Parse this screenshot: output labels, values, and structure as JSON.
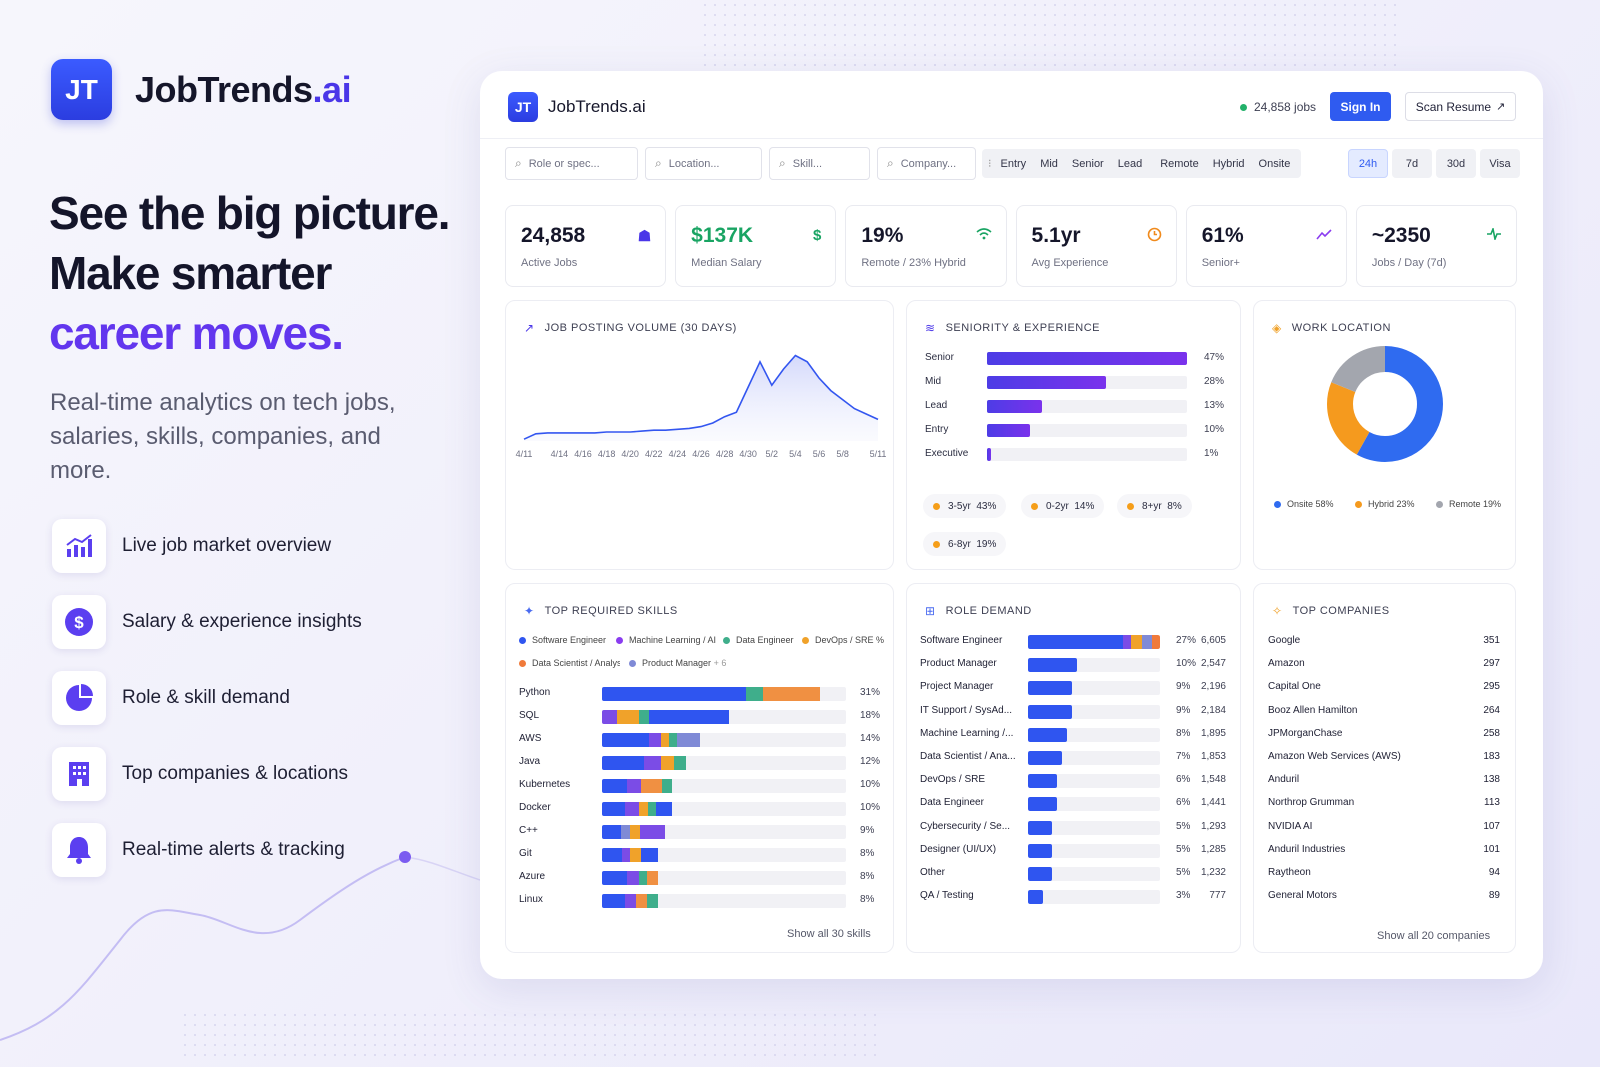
{
  "brand": {
    "logo": "JT",
    "name": "JobTrends",
    "suffix": ".ai"
  },
  "hero": {
    "line1": "See the big picture.",
    "line2": "Make smarter",
    "line3": "career moves.",
    "subtitle": "Real-time analytics on tech jobs, salaries, skills, companies, and more."
  },
  "features": [
    {
      "icon": "chart-bar-icon",
      "label": "Live job market overview"
    },
    {
      "icon": "dollar-icon",
      "label": "Salary & experience insights"
    },
    {
      "icon": "pie-chart-icon",
      "label": "Role & skill demand"
    },
    {
      "icon": "building-icon",
      "label": "Top companies & locations"
    },
    {
      "icon": "bell-icon",
      "label": "Real-time alerts & tracking"
    }
  ],
  "app": {
    "logo": "JT",
    "name": "JobTrends.ai",
    "job_count": "24,858 jobs",
    "sign_in": "Sign In",
    "scan_resume": "Scan Resume",
    "search": {
      "role": "Role or spec...",
      "location": "Location...",
      "skill": "Skill...",
      "company": "Company..."
    },
    "levels": [
      "Entry",
      "Mid",
      "Senior",
      "Lead"
    ],
    "work_types": [
      "Remote",
      "Hybrid",
      "Onsite"
    ],
    "time_ranges": [
      "24h",
      "7d",
      "30d",
      "Visa"
    ],
    "active_time": "24h"
  },
  "stats": [
    {
      "value": "24,858",
      "label": "Active Jobs",
      "icon": "users-icon",
      "color": "#4a36e8"
    },
    {
      "value": "$137K",
      "label": "Median Salary",
      "icon": "dollar-icon",
      "color": "#19a463"
    },
    {
      "value": "19%",
      "label": "Remote / 23% Hybrid",
      "icon": "wifi-icon",
      "color": "#19a463"
    },
    {
      "value": "5.1yr",
      "label": "Avg Experience",
      "icon": "clock-icon",
      "color": "#f08a1c"
    },
    {
      "value": "61%",
      "label": "Senior+",
      "icon": "trend-icon",
      "color": "#8a3cf0"
    },
    {
      "value": "~2350",
      "label": "Jobs / Day (7d)",
      "icon": "pulse-icon",
      "color": "#19a463"
    }
  ],
  "volume": {
    "title": "JOB POSTING VOLUME (30 DAYS)"
  },
  "chart_data": {
    "type": "area",
    "title": "JOB POSTING VOLUME (30 DAYS)",
    "x": [
      "4/11",
      "4/12",
      "4/13",
      "4/14",
      "4/15",
      "4/16",
      "4/17",
      "4/18",
      "4/19",
      "4/20",
      "4/21",
      "4/22",
      "4/23",
      "4/24",
      "4/25",
      "4/26",
      "4/27",
      "4/28",
      "4/29",
      "4/30",
      "5/1",
      "5/2",
      "5/3",
      "5/4",
      "5/5",
      "5/6",
      "5/7",
      "5/8",
      "5/9",
      "5/10",
      "5/11"
    ],
    "tick_labels": [
      "4/11",
      "4/14",
      "4/16",
      "4/18",
      "4/20",
      "4/22",
      "4/24",
      "4/26",
      "4/28",
      "4/30",
      "5/2",
      "5/4",
      "5/6",
      "5/8",
      "5/11"
    ],
    "y": [
      2,
      8,
      9,
      9,
      9,
      9,
      9,
      10,
      10,
      10,
      11,
      12,
      12,
      13,
      14,
      16,
      20,
      27,
      32,
      60,
      88,
      62,
      80,
      95,
      88,
      70,
      56,
      46,
      36,
      30,
      24
    ],
    "grid": false
  },
  "seniority": {
    "title": "SENIORITY & EXPERIENCE",
    "levels": [
      {
        "label": "Senior",
        "value": 47,
        "pct": "47%"
      },
      {
        "label": "Mid",
        "value": 28,
        "pct": "28%"
      },
      {
        "label": "Lead",
        "value": 13,
        "pct": "13%"
      },
      {
        "label": "Entry",
        "value": 10,
        "pct": "10%"
      },
      {
        "label": "Executive",
        "value": 1,
        "pct": "1%"
      }
    ],
    "experience": [
      {
        "label": "3-5yr",
        "pct": "43%"
      },
      {
        "label": "0-2yr",
        "pct": "14%"
      },
      {
        "label": "8+yr",
        "pct": "8%"
      },
      {
        "label": "6-8yr",
        "pct": "19%"
      }
    ]
  },
  "location": {
    "title": "WORK LOCATION",
    "slices": [
      {
        "label": "Onsite",
        "pct": "58%",
        "value": 58,
        "color": "#2f6bf0"
      },
      {
        "label": "Hybrid",
        "pct": "23%",
        "value": 23,
        "color": "#f59a1e"
      },
      {
        "label": "Remote",
        "pct": "19%",
        "value": 19,
        "color": "#a3a6ae"
      }
    ]
  },
  "skills": {
    "title": "TOP REQUIRED SKILLS",
    "legend": [
      {
        "label": "Software Engineer",
        "color": "#2f55f0"
      },
      {
        "label": "Machine Learning / AI",
        "color": "#8a3cf0"
      },
      {
        "label": "Data Engineer",
        "color": "#3fae8b"
      },
      {
        "label": "DevOps / SRE",
        "color": "#f0a22a"
      },
      {
        "label": "Data Scientist / Analyst",
        "color": "#f07a3a"
      },
      {
        "label": "Product Manager",
        "color": "#7f8ad6"
      }
    ],
    "legend_more": "+ 6",
    "rows": [
      {
        "label": "Python",
        "pct": "31%",
        "value": 31,
        "segs": [
          [
            0.66,
            "#2f55f0"
          ],
          [
            0.08,
            "#3fae8b"
          ],
          [
            0.26,
            "#f09042"
          ]
        ]
      },
      {
        "label": "SQL",
        "pct": "18%",
        "value": 18,
        "segs": [
          [
            0.12,
            "#7b4ce6"
          ],
          [
            0.17,
            "#f0a22a"
          ],
          [
            0.08,
            "#3fae8b"
          ],
          [
            0.63,
            "#2f55f0"
          ]
        ]
      },
      {
        "label": "AWS",
        "pct": "14%",
        "value": 14,
        "segs": [
          [
            0.48,
            "#2f55f0"
          ],
          [
            0.12,
            "#7b4ce6"
          ],
          [
            0.08,
            "#f0a22a"
          ],
          [
            0.08,
            "#3fae8b"
          ],
          [
            0.24,
            "#7f8ad6"
          ]
        ]
      },
      {
        "label": "Java",
        "pct": "12%",
        "value": 12,
        "segs": [
          [
            0.5,
            "#2f55f0"
          ],
          [
            0.2,
            "#7b4ce6"
          ],
          [
            0.15,
            "#f0a22a"
          ],
          [
            0.15,
            "#3fae8b"
          ]
        ]
      },
      {
        "label": "Kubernetes",
        "pct": "10%",
        "value": 10,
        "segs": [
          [
            0.35,
            "#2f55f0"
          ],
          [
            0.2,
            "#7b4ce6"
          ],
          [
            0.3,
            "#f09042"
          ],
          [
            0.15,
            "#3fae8b"
          ]
        ]
      },
      {
        "label": "Docker",
        "pct": "10%",
        "value": 10,
        "segs": [
          [
            0.33,
            "#2f55f0"
          ],
          [
            0.2,
            "#7b4ce6"
          ],
          [
            0.12,
            "#f0a22a"
          ],
          [
            0.12,
            "#3fae8b"
          ],
          [
            0.23,
            "#2f55f0"
          ]
        ]
      },
      {
        "label": "C++",
        "pct": "9%",
        "value": 9,
        "segs": [
          [
            0.3,
            "#2f55f0"
          ],
          [
            0.15,
            "#7f8ad6"
          ],
          [
            0.15,
            "#f0a22a"
          ],
          [
            0.4,
            "#7b4ce6"
          ]
        ]
      },
      {
        "label": "Git",
        "pct": "8%",
        "value": 8,
        "segs": [
          [
            0.35,
            "#2f55f0"
          ],
          [
            0.15,
            "#7b4ce6"
          ],
          [
            0.2,
            "#f0a22a"
          ],
          [
            0.3,
            "#2f55f0"
          ]
        ]
      },
      {
        "label": "Azure",
        "pct": "8%",
        "value": 8,
        "segs": [
          [
            0.45,
            "#2f55f0"
          ],
          [
            0.2,
            "#7b4ce6"
          ],
          [
            0.15,
            "#3fae8b"
          ],
          [
            0.2,
            "#f09042"
          ]
        ]
      },
      {
        "label": "Linux",
        "pct": "8%",
        "value": 8,
        "segs": [
          [
            0.4,
            "#2f55f0"
          ],
          [
            0.2,
            "#7b4ce6"
          ],
          [
            0.2,
            "#f09042"
          ],
          [
            0.2,
            "#3fae8b"
          ]
        ]
      }
    ],
    "show_all": "Show all 30 skills"
  },
  "roles": {
    "title": "ROLE DEMAND",
    "rows": [
      {
        "label": "Software Engineer",
        "pct": "27%",
        "count": "6,605",
        "value": 27
      },
      {
        "label": "Product Manager",
        "pct": "10%",
        "count": "2,547",
        "value": 10
      },
      {
        "label": "Project Manager",
        "pct": "9%",
        "count": "2,196",
        "value": 9
      },
      {
        "label": "IT Support / SysAd...",
        "pct": "9%",
        "count": "2,184",
        "value": 9
      },
      {
        "label": "Machine Learning /...",
        "pct": "8%",
        "count": "1,895",
        "value": 8
      },
      {
        "label": "Data Scientist / Ana...",
        "pct": "7%",
        "count": "1,853",
        "value": 7
      },
      {
        "label": "DevOps / SRE",
        "pct": "6%",
        "count": "1,548",
        "value": 6
      },
      {
        "label": "Data Engineer",
        "pct": "6%",
        "count": "1,441",
        "value": 6
      },
      {
        "label": "Cybersecurity / Se...",
        "pct": "5%",
        "count": "1,293",
        "value": 5
      },
      {
        "label": "Designer (UI/UX)",
        "pct": "5%",
        "count": "1,285",
        "value": 5
      },
      {
        "label": "Other",
        "pct": "5%",
        "count": "1,232",
        "value": 5
      },
      {
        "label": "QA / Testing",
        "pct": "3%",
        "count": "777",
        "value": 3
      }
    ]
  },
  "companies": {
    "title": "TOP COMPANIES",
    "rows": [
      {
        "name": "Google",
        "count": "351"
      },
      {
        "name": "Amazon",
        "count": "297"
      },
      {
        "name": "Capital One",
        "count": "295"
      },
      {
        "name": "Booz Allen Hamilton",
        "count": "264"
      },
      {
        "name": "JPMorganChase",
        "count": "258"
      },
      {
        "name": "Amazon Web Services (AWS)",
        "count": "183"
      },
      {
        "name": "Anduril",
        "count": "138"
      },
      {
        "name": "Northrop Grumman",
        "count": "113"
      },
      {
        "name": "NVIDIA AI",
        "count": "107"
      },
      {
        "name": "Anduril Industries",
        "count": "101"
      },
      {
        "name": "Raytheon",
        "count": "94"
      },
      {
        "name": "General Motors",
        "count": "89"
      }
    ],
    "show_all": "Show all 20 companies"
  }
}
